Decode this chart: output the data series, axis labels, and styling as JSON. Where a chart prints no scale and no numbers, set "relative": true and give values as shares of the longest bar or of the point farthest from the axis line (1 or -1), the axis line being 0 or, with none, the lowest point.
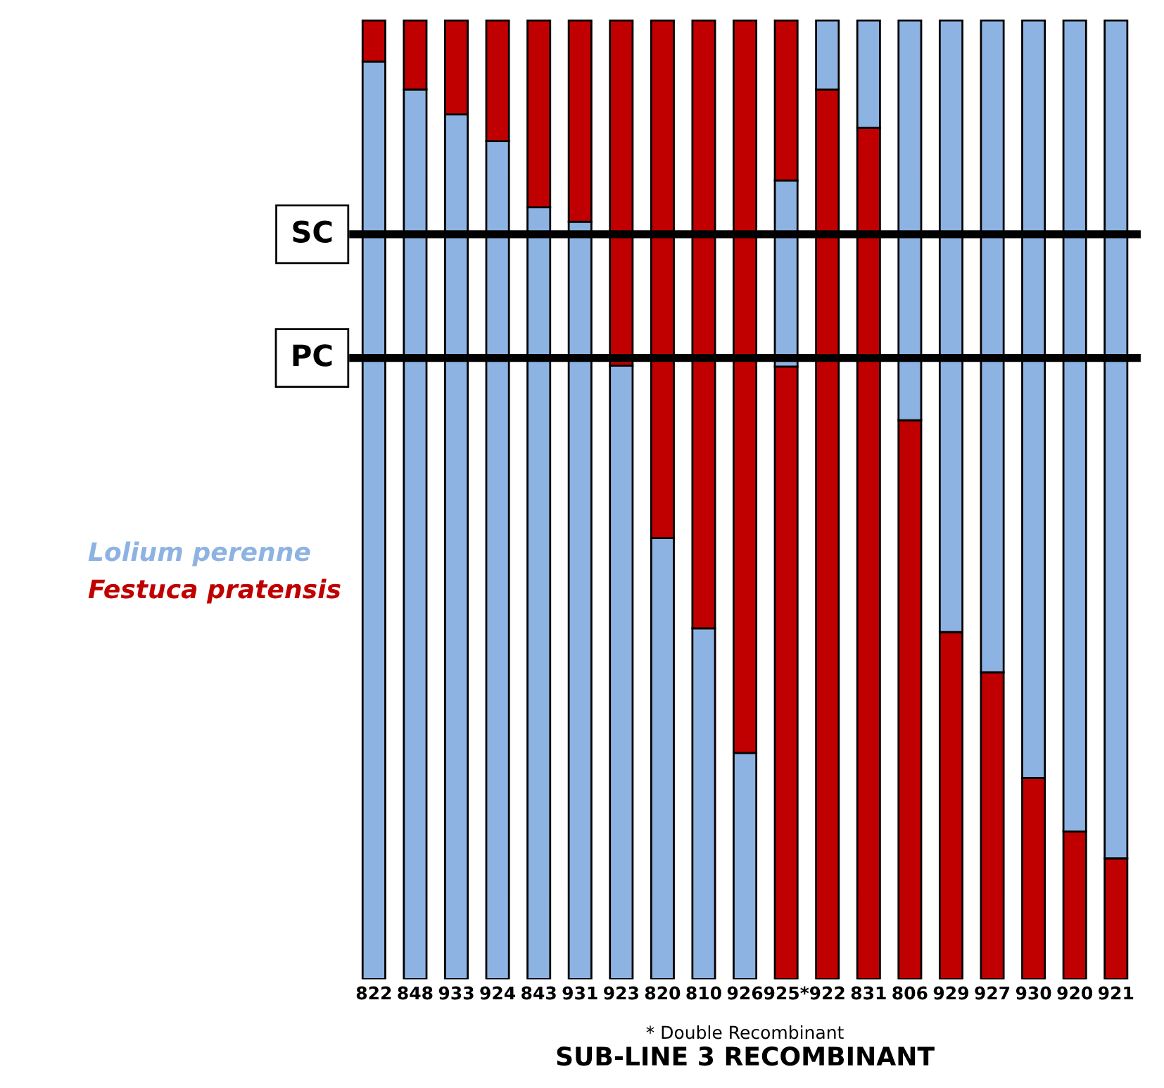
{
  "chart_data": {
    "type": "bar",
    "stacked": true,
    "relative": true,
    "xlabel": "SUB-LINE 3 RECOMBINANT",
    "categories": [
      "822",
      "848",
      "933",
      "924",
      "843",
      "931",
      "923",
      "820",
      "810",
      "926",
      "925*",
      "922",
      "831",
      "806",
      "929",
      "927",
      "930",
      "920",
      "921"
    ],
    "series": [
      {
        "name": "Lolium perenne",
        "color": "#8db3e2",
        "values": [
          0.957,
          0.928,
          0.902,
          0.874,
          0.805,
          0.79,
          0.64,
          0.46,
          0.366,
          0.236,
          null,
          null,
          null,
          null,
          null,
          null,
          null,
          null,
          null
        ]
      },
      {
        "name": "Festuca pratensis",
        "color": "#c00000",
        "values": [
          null,
          null,
          null,
          null,
          null,
          null,
          null,
          null,
          null,
          null,
          0.639,
          0.928,
          0.888,
          0.583,
          0.362,
          0.32,
          0.21,
          0.154,
          0.126
        ]
      },
      {
        "color": "#8db3e2",
        "values": [
          null,
          null,
          null,
          null,
          null,
          null,
          null,
          null,
          null,
          null,
          0.194,
          0.072,
          0.112,
          0.417,
          0.638,
          0.68,
          0.79,
          0.846,
          0.874
        ]
      },
      {
        "color": "#c00000",
        "values": [
          0.043,
          0.072,
          0.098,
          0.126,
          0.195,
          0.21,
          0.36,
          0.54,
          0.634,
          0.764,
          0.167,
          null,
          null,
          null,
          null,
          null,
          null,
          null,
          null
        ]
      }
    ],
    "ref_lines": [
      {
        "axis": "y",
        "value": 0.777,
        "label": "SC",
        "color": "#000000"
      },
      {
        "axis": "y",
        "value": 0.648,
        "label": "PC",
        "color": "#000000"
      }
    ],
    "annotations": [
      "* Double Recombinant"
    ],
    "legend": "left"
  }
}
